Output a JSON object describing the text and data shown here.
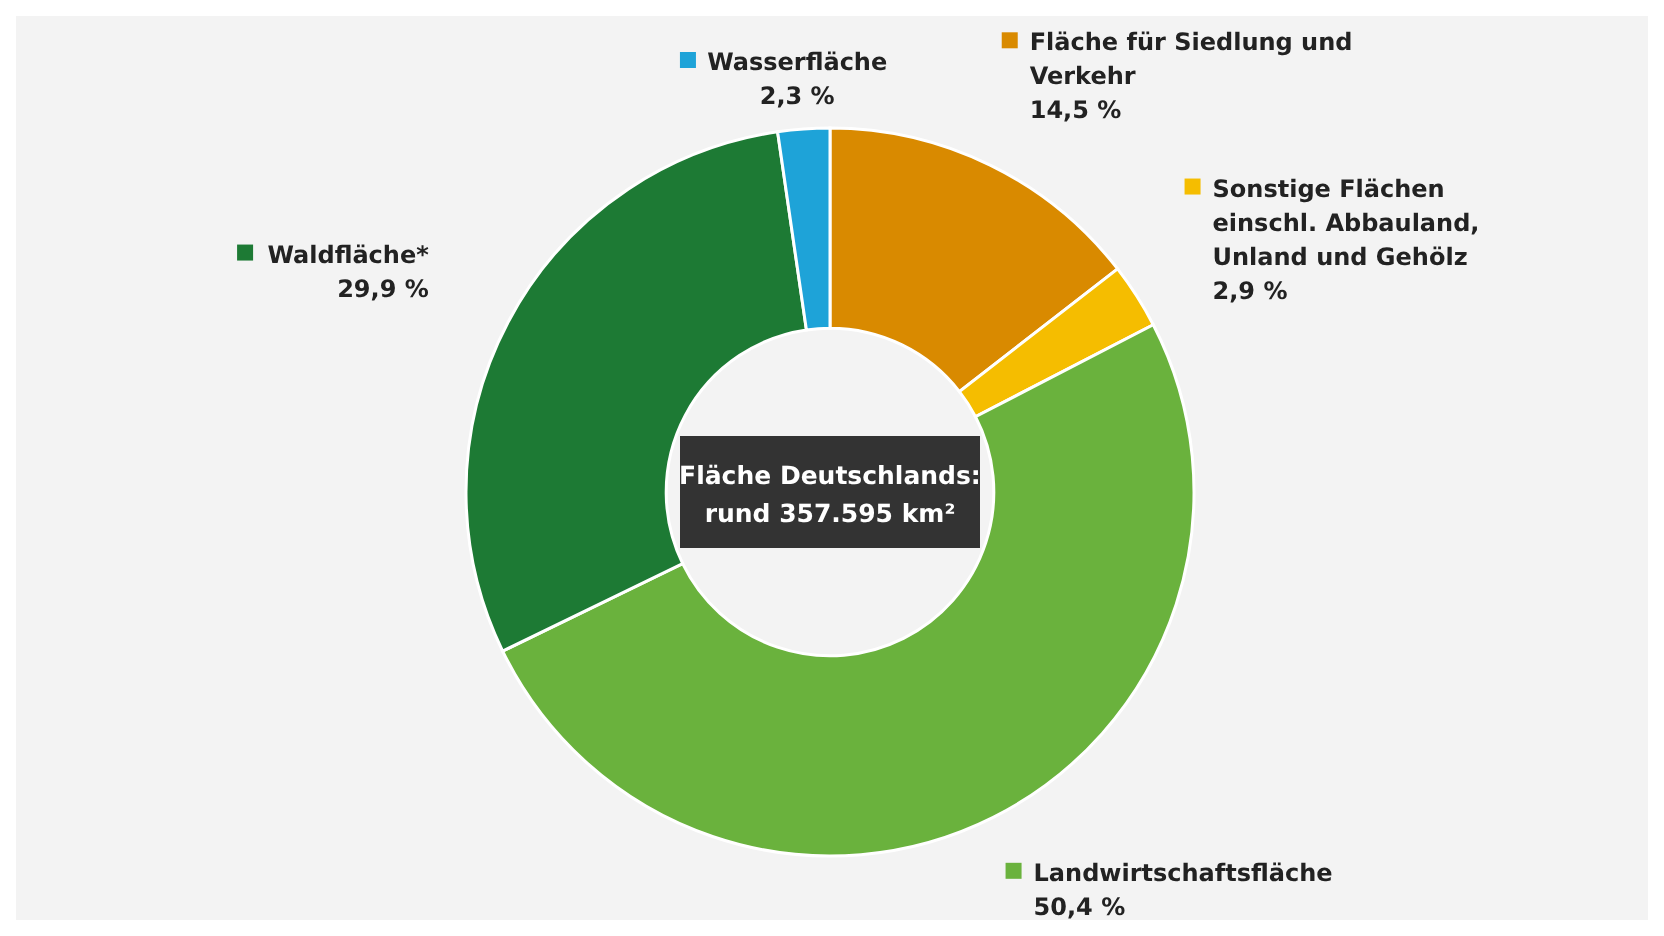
{
  "chart_data": {
    "type": "donut",
    "categories": [
      "Fläche für Siedlung und Verkehr",
      "Sonstige Flächen einschl. Abbauland, Unland und Gehölz",
      "Landwirtschaftsfläche",
      "Waldfläche*",
      "Wasserfläche"
    ],
    "values": [
      14.5,
      2.9,
      50.4,
      29.9,
      2.3
    ],
    "colors": [
      "#d98a00",
      "#f5bd00",
      "#6ab23d",
      "#1d7a34",
      "#1ea3d8"
    ],
    "value_labels": [
      "14,5 %",
      "2,9 %",
      "50,4 %",
      "29,9 %",
      "2,3 %"
    ],
    "annotations": [
      "Fläche Deutschlands: rund 357.595 km²"
    ],
    "legend": "right"
  }
}
